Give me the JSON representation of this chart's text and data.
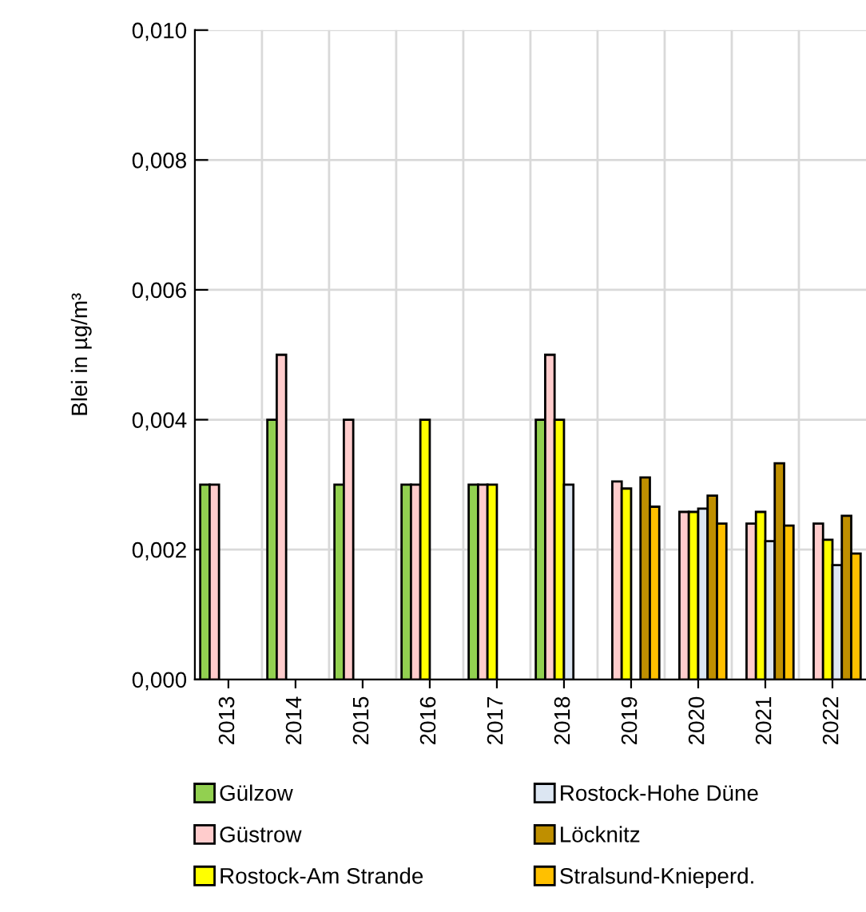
{
  "chart_data": {
    "type": "bar",
    "ylabel": "Blei in µg/m³",
    "categories": [
      "2013",
      "2014",
      "2015",
      "2016",
      "2017",
      "2018",
      "2019",
      "2020",
      "2021",
      "2022"
    ],
    "series": [
      {
        "name": "Gülzow",
        "color": "#92d050",
        "values": [
          0.003,
          0.004,
          0.003,
          0.003,
          0.003,
          0.004,
          null,
          null,
          null,
          null
        ]
      },
      {
        "name": "Güstrow",
        "color": "#ffcccc",
        "values": [
          0.003,
          0.005,
          0.004,
          0.003,
          0.003,
          0.005,
          0.00305,
          0.00258,
          0.0024,
          0.0024
        ]
      },
      {
        "name": "Rostock-Am Strande",
        "color": "#ffff00",
        "values": [
          null,
          null,
          null,
          0.004,
          0.003,
          0.004,
          0.00294,
          0.00258,
          0.00258,
          0.00215
        ]
      },
      {
        "name": "Rostock-Hohe Düne",
        "color": "#dce6f2",
        "values": [
          null,
          null,
          null,
          null,
          null,
          0.003,
          null,
          0.00263,
          0.00213,
          0.00176
        ]
      },
      {
        "name": "Löcknitz",
        "color": "#bf8f00",
        "values": [
          null,
          null,
          null,
          null,
          null,
          null,
          0.00311,
          0.00283,
          0.00333,
          0.00252
        ]
      },
      {
        "name": "Stralsund-Knieperd.",
        "color": "#ffc000",
        "values": [
          null,
          null,
          null,
          null,
          null,
          null,
          0.00266,
          0.0024,
          0.00237,
          0.00194
        ]
      }
    ],
    "ylim": [
      0,
      0.01
    ],
    "yticks": [
      {
        "value": 0,
        "label": "0,000"
      },
      {
        "value": 0.002,
        "label": "0,002"
      },
      {
        "value": 0.004,
        "label": "0,004"
      },
      {
        "value": 0.006,
        "label": "0,006"
      },
      {
        "value": 0.008,
        "label": "0,008"
      },
      {
        "value": 0.01,
        "label": "0,010"
      }
    ],
    "grid": true,
    "legend": "bottom"
  }
}
